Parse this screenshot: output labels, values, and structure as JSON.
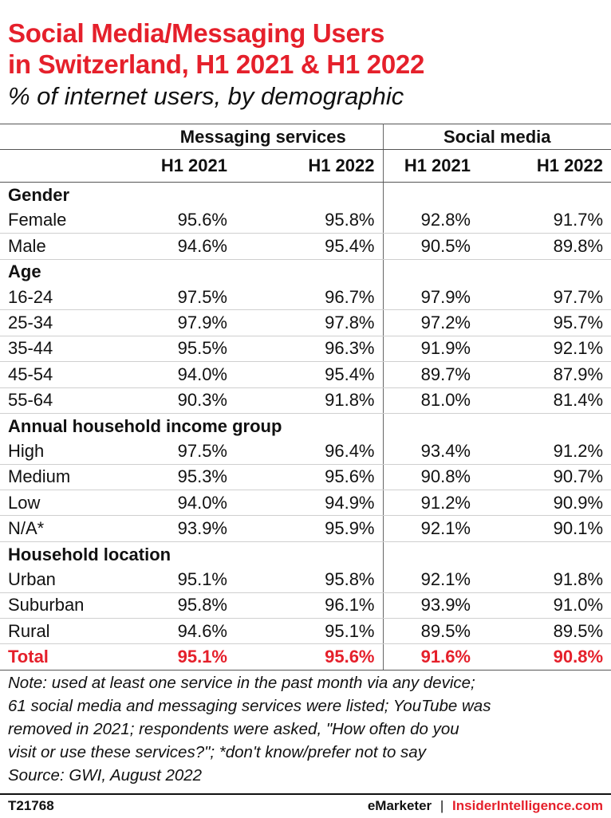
{
  "title_line1": "Social Media/Messaging Users",
  "title_line2": "in Switzerland, H1 2021 & H1 2022",
  "subtitle": "% of internet users, by demographic",
  "chart_data": {
    "type": "table",
    "column_groups": [
      "Messaging services",
      "Social media"
    ],
    "columns": [
      "H1 2021",
      "H1 2022",
      "H1 2021",
      "H1 2022"
    ],
    "sections": [
      {
        "heading": "Gender",
        "rows": [
          {
            "label": "Female",
            "values": [
              "95.6%",
              "95.8%",
              "92.8%",
              "91.7%"
            ]
          },
          {
            "label": "Male",
            "values": [
              "94.6%",
              "95.4%",
              "90.5%",
              "89.8%"
            ]
          }
        ]
      },
      {
        "heading": "Age",
        "rows": [
          {
            "label": "16-24",
            "values": [
              "97.5%",
              "96.7%",
              "97.9%",
              "97.7%"
            ]
          },
          {
            "label": "25-34",
            "values": [
              "97.9%",
              "97.8%",
              "97.2%",
              "95.7%"
            ]
          },
          {
            "label": "35-44",
            "values": [
              "95.5%",
              "96.3%",
              "91.9%",
              "92.1%"
            ]
          },
          {
            "label": "45-54",
            "values": [
              "94.0%",
              "95.4%",
              "89.7%",
              "87.9%"
            ]
          },
          {
            "label": "55-64",
            "values": [
              "90.3%",
              "91.8%",
              "81.0%",
              "81.4%"
            ]
          }
        ]
      },
      {
        "heading": "Annual household income group",
        "rows": [
          {
            "label": "High",
            "values": [
              "97.5%",
              "96.4%",
              "93.4%",
              "91.2%"
            ]
          },
          {
            "label": "Medium",
            "values": [
              "95.3%",
              "95.6%",
              "90.8%",
              "90.7%"
            ]
          },
          {
            "label": "Low",
            "values": [
              "94.0%",
              "94.9%",
              "91.2%",
              "90.9%"
            ]
          },
          {
            "label": "N/A*",
            "values": [
              "93.9%",
              "95.9%",
              "92.1%",
              "90.1%"
            ]
          }
        ]
      },
      {
        "heading": "Household location",
        "rows": [
          {
            "label": "Urban",
            "values": [
              "95.1%",
              "95.8%",
              "92.1%",
              "91.8%"
            ]
          },
          {
            "label": "Suburban",
            "values": [
              "95.8%",
              "96.1%",
              "93.9%",
              "91.0%"
            ]
          },
          {
            "label": "Rural",
            "values": [
              "94.6%",
              "95.1%",
              "89.5%",
              "89.5%"
            ]
          }
        ]
      }
    ],
    "total": {
      "label": "Total",
      "values": [
        "95.1%",
        "95.6%",
        "91.6%",
        "90.8%"
      ]
    }
  },
  "note_line1": "Note: used at least one service in the past month via any device;",
  "note_line2": "61 social media and messaging services were listed; YouTube was",
  "note_line3": "removed in 2021; respondents were asked, \"How often do you",
  "note_line4": "visit or use these services?\"; *don't know/prefer not to say",
  "source": "Source: GWI, August 2022",
  "footer": {
    "chart_id": "T21768",
    "brand1": "eMarketer",
    "separator": "|",
    "brand2": "InsiderIntelligence.com"
  },
  "colors": {
    "accent": "#e5202b",
    "text": "#111111"
  }
}
